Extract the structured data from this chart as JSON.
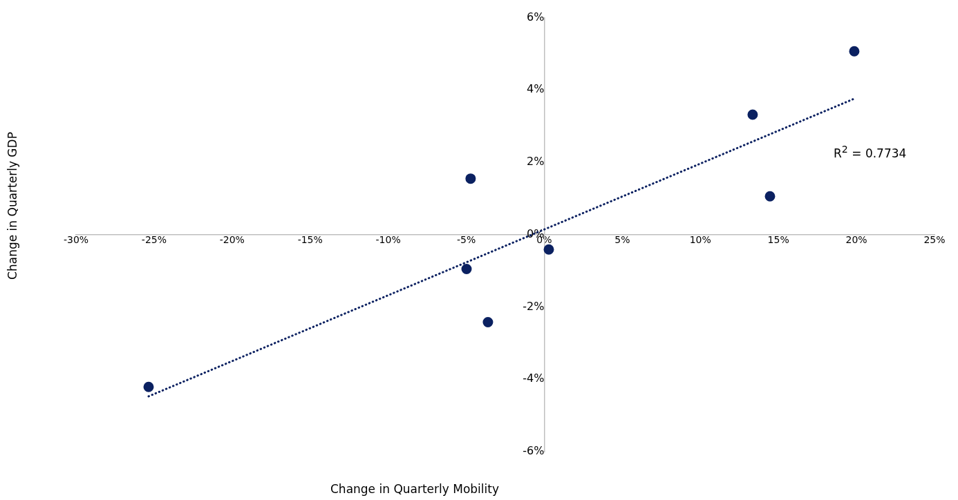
{
  "chart_data": {
    "type": "scatter",
    "xlabel": "Change in Quarterly Mobility",
    "ylabel": "Change in Quarterly GDP",
    "x": [
      -25.35,
      -4.72,
      -4.98,
      -3.61,
      0.29,
      13.35,
      14.46,
      19.86
    ],
    "series": [
      {
        "color": "#0b2161",
        "marker": "circle",
        "values": [
          -4.21,
          1.55,
          -0.95,
          -2.42,
          -0.41,
          3.32,
          1.06,
          5.07
        ]
      },
      {
        "type": "line",
        "color": "#0b2161",
        "marker": "none",
        "line_style": "dotted",
        "x": [
          -25.35,
          19.86
        ],
        "values": [
          -4.47,
          3.76
        ]
      }
    ],
    "xlim": [
      -30,
      25
    ],
    "ylim": [
      -6,
      6
    ],
    "xticks": [
      {
        "value": -30,
        "label": "-30%"
      },
      {
        "value": -25,
        "label": "-25%"
      },
      {
        "value": -20,
        "label": "-20%"
      },
      {
        "value": -15,
        "label": "-15%"
      },
      {
        "value": -10,
        "label": "-10%"
      },
      {
        "value": -5,
        "label": "-5%"
      },
      {
        "value": 0,
        "label": "0%"
      },
      {
        "value": 5,
        "label": "5%"
      },
      {
        "value": 10,
        "label": "10%"
      },
      {
        "value": 15,
        "label": "15%"
      },
      {
        "value": 20,
        "label": "20%"
      },
      {
        "value": 25,
        "label": "25%"
      }
    ],
    "yticks": [
      {
        "value": -6,
        "label": "-6%"
      },
      {
        "value": -4,
        "label": "-4%"
      },
      {
        "value": -2,
        "label": "-2%"
      },
      {
        "value": 0,
        "label": "0%"
      },
      {
        "value": 2,
        "label": "2%"
      },
      {
        "value": 4,
        "label": "4%"
      },
      {
        "value": 6,
        "label": "6%"
      }
    ],
    "annotations": [
      "R$^{2}$ = 0.7734"
    ],
    "grid": false,
    "legend": false
  }
}
